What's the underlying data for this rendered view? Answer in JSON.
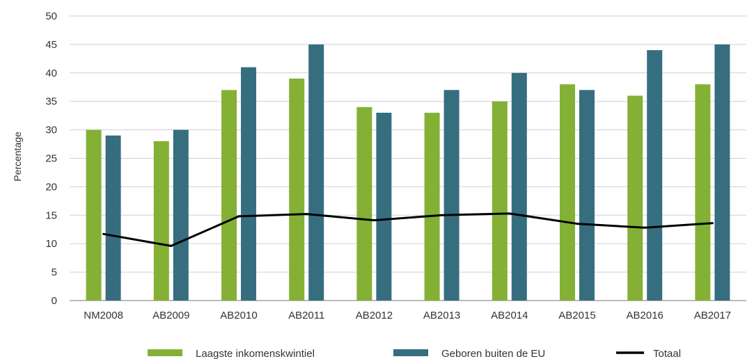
{
  "chart_data": {
    "type": "bar",
    "ylabel": "Percentage",
    "ylim": [
      0,
      50
    ],
    "yticks": [
      0,
      5,
      10,
      15,
      20,
      25,
      30,
      35,
      40,
      45,
      50
    ],
    "grid": true,
    "legend_position": "bottom",
    "categories": [
      "NM2008",
      "AB2009",
      "AB2010",
      "AB2011",
      "AB2012",
      "AB2013",
      "AB2014",
      "AB2015",
      "AB2016",
      "AB2017"
    ],
    "series": [
      {
        "name": "Laagste inkomenskwintiel",
        "kind": "bar",
        "color": "#84b135",
        "values": [
          30,
          28,
          37,
          39,
          34,
          33,
          35,
          38,
          36,
          38
        ]
      },
      {
        "name": "Geboren buiten de EU",
        "kind": "bar",
        "color": "#366e80",
        "values": [
          29,
          30,
          41,
          45,
          33,
          37,
          40,
          37,
          44,
          45
        ]
      },
      {
        "name": "Totaal",
        "kind": "line",
        "color": "#000000",
        "values": [
          11.7,
          9.6,
          14.8,
          15.2,
          14.1,
          15.0,
          15.3,
          13.5,
          12.8,
          13.6
        ]
      }
    ]
  }
}
